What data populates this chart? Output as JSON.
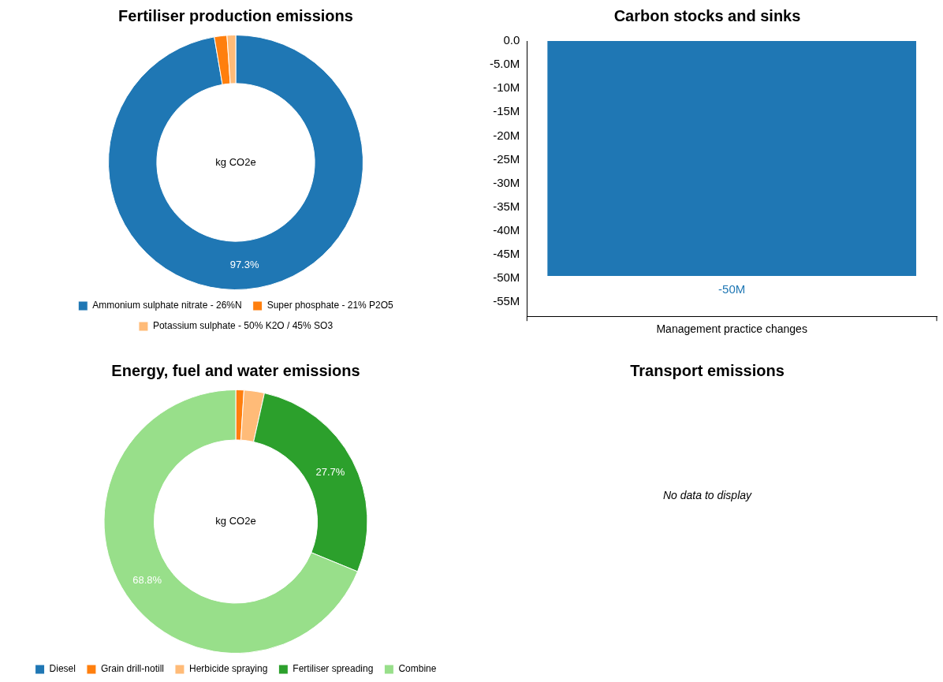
{
  "chart_data": [
    {
      "type": "donut",
      "title": "Fertiliser production emissions",
      "categories": [
        "Ammonium sulphate nitrate - 26%N",
        "Super phosphate - 21% P2O5",
        "Potassium sulphate - 50% K2O / 45% SO3"
      ],
      "values": [
        97.3,
        1.6,
        1.1
      ],
      "colors": [
        "#1f77b4",
        "#ff7f0e",
        "#ffbb78"
      ],
      "value_labels": [
        "97.3%",
        null,
        null
      ],
      "annotations": [
        "kg CO2e"
      ],
      "legend": "bottom"
    },
    {
      "type": "bar",
      "title": "Carbon stocks and sinks",
      "categories": [
        "Management practice changes"
      ],
      "values": [
        -49500000
      ],
      "color": "#1f77b4",
      "value_labels": [
        "-50M"
      ],
      "ylim": [
        -58000000,
        0
      ],
      "yticks": [
        {
          "value": 0,
          "label": "0.0"
        },
        {
          "value": -5000000,
          "label": "-5.0M"
        },
        {
          "value": -10000000,
          "label": "-10M"
        },
        {
          "value": -15000000,
          "label": "-15M"
        },
        {
          "value": -20000000,
          "label": "-20M"
        },
        {
          "value": -25000000,
          "label": "-25M"
        },
        {
          "value": -30000000,
          "label": "-30M"
        },
        {
          "value": -35000000,
          "label": "-35M"
        },
        {
          "value": -40000000,
          "label": "-40M"
        },
        {
          "value": -45000000,
          "label": "-45M"
        },
        {
          "value": -50000000,
          "label": "-50M"
        },
        {
          "value": -55000000,
          "label": "-55M"
        }
      ],
      "grid": false,
      "legend": false
    },
    {
      "type": "donut",
      "title": "Energy, fuel and water emissions",
      "categories": [
        "Diesel",
        "Grain drill-notill",
        "Herbicide spraying",
        "Fertiliser spreading",
        "Combine"
      ],
      "values": [
        0,
        1.0,
        2.5,
        27.7,
        68.8
      ],
      "colors": [
        "#1f77b4",
        "#ff7f0e",
        "#ffbb78",
        "#2ca02c",
        "#98df8a"
      ],
      "value_labels": [
        null,
        null,
        null,
        "27.7%",
        "68.8%"
      ],
      "annotations": [
        "kg CO2e"
      ],
      "legend": "bottom"
    },
    {
      "type": "other",
      "title": "Transport emissions",
      "annotations": [
        "No data to display"
      ]
    }
  ]
}
